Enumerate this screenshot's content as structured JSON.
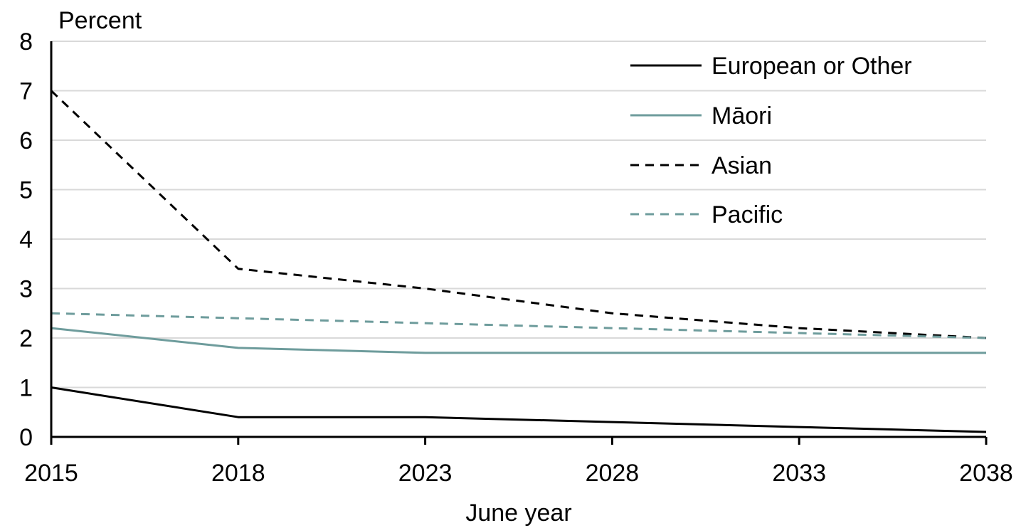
{
  "chart_data": {
    "type": "line",
    "x_categories": [
      "2015",
      "2018",
      "2023",
      "2028",
      "2033",
      "2038"
    ],
    "y_axis": {
      "title": "Percent",
      "min": 0,
      "max": 8,
      "ticks": [
        "0",
        "1",
        "2",
        "3",
        "4",
        "5",
        "6",
        "7",
        "8"
      ]
    },
    "x_axis": {
      "title": "June year"
    },
    "grid": true,
    "legend_position": "top-right",
    "series": [
      {
        "name": "European or Other",
        "color": "#000000",
        "dash": "solid",
        "values": [
          1.0,
          0.4,
          0.4,
          0.3,
          0.2,
          0.1
        ]
      },
      {
        "name": "Māori",
        "color": "#6e9c9c",
        "dash": "solid",
        "values": [
          2.2,
          1.8,
          1.7,
          1.7,
          1.7,
          1.7
        ]
      },
      {
        "name": "Asian",
        "color": "#000000",
        "dash": "dashed",
        "values": [
          7.0,
          3.4,
          3.0,
          2.5,
          2.2,
          2.0
        ]
      },
      {
        "name": "Pacific",
        "color": "#6e9c9c",
        "dash": "dashed",
        "values": [
          2.5,
          2.4,
          2.3,
          2.2,
          2.1,
          2.0
        ]
      }
    ]
  }
}
